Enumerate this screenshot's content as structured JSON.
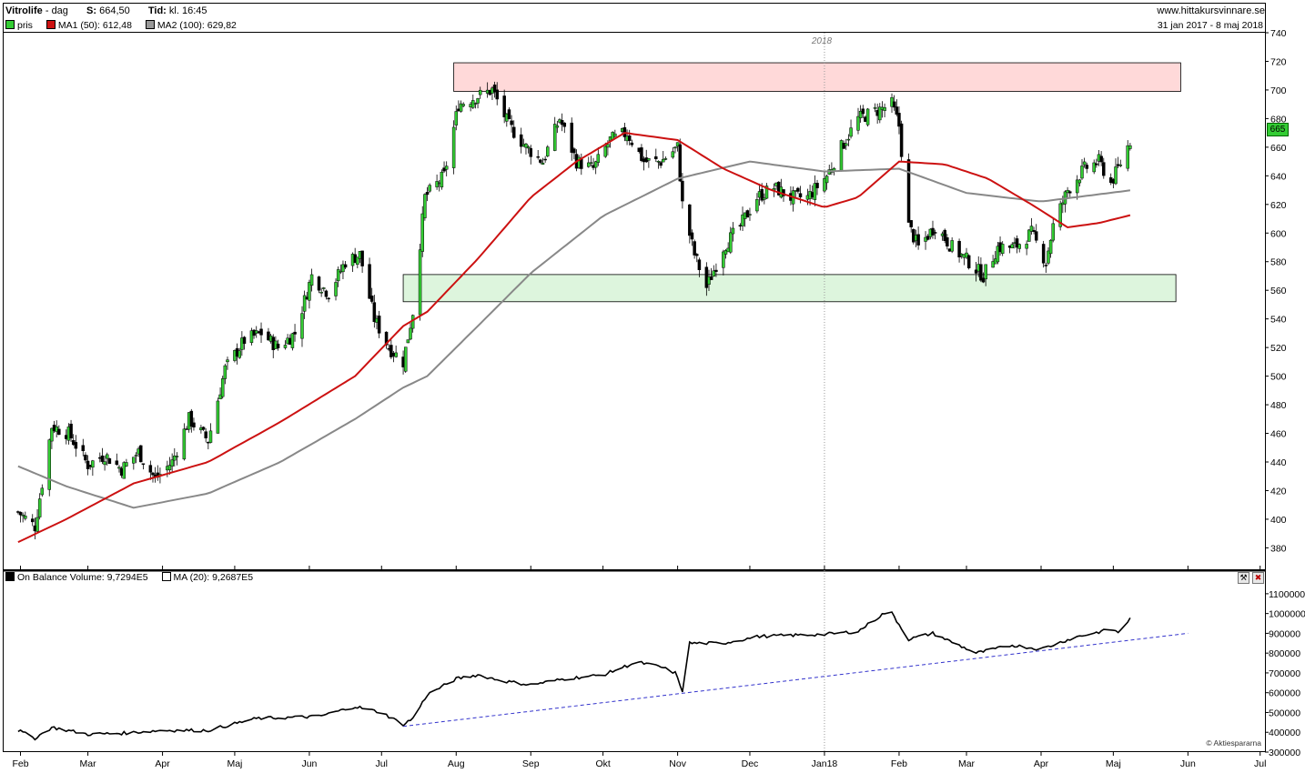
{
  "header": {
    "ticker": "Vitrolife",
    "period": "dag",
    "price_label": "S:",
    "price_value": "664,50",
    "time_label": "Tid:",
    "time_value": "kl. 16:45",
    "site": "www.hittakursvinnare.se",
    "date_range": "31 jan 2017 - 8 maj 2018"
  },
  "legend": {
    "pris": "pris",
    "ma1": "MA1 (50): 612,48",
    "ma2": "MA2 (100): 629,82",
    "obv": "On Balance Volume: 9,7294E5",
    "obv_ma": "MA (20): 9,2687E5"
  },
  "colors": {
    "up_candle": "#33cc33",
    "down_candle": "#000000",
    "ma1": "#cc1111",
    "ma2": "#888888",
    "obv": "#000000",
    "trendline": "#3333cc",
    "resistance_zone": "#ffd9d9",
    "support_zone": "#ddf5dd",
    "price_marker": "#33cc33"
  },
  "copyright": "© Aktiespararna",
  "year_marker": "2018",
  "price_marker": "665",
  "chart_data": [
    {
      "type": "candlestick",
      "title": "Vitrolife",
      "x_ticks": [
        "Feb",
        "Mar",
        "Apr",
        "Maj",
        "Jun",
        "Jul",
        "Aug",
        "Sep",
        "Okt",
        "Nov",
        "Dec",
        "Jan18",
        "Feb",
        "Mar",
        "Apr",
        "Maj",
        "Jun",
        "Jul"
      ],
      "ylim": [
        365,
        740
      ],
      "y_ticks": [
        380,
        400,
        420,
        440,
        460,
        480,
        500,
        520,
        540,
        560,
        580,
        600,
        620,
        640,
        660,
        680,
        700,
        720,
        740
      ],
      "close_anchors": [
        {
          "date": "2017-01-31",
          "value": 405
        },
        {
          "date": "2017-02-07",
          "value": 395
        },
        {
          "date": "2017-02-14",
          "value": 465
        },
        {
          "date": "2017-02-21",
          "value": 460
        },
        {
          "date": "2017-03-01",
          "value": 438
        },
        {
          "date": "2017-03-08",
          "value": 445
        },
        {
          "date": "2017-03-15",
          "value": 435
        },
        {
          "date": "2017-03-22",
          "value": 447
        },
        {
          "date": "2017-03-29",
          "value": 428
        },
        {
          "date": "2017-04-05",
          "value": 440
        },
        {
          "date": "2017-04-12",
          "value": 470
        },
        {
          "date": "2017-04-20",
          "value": 455
        },
        {
          "date": "2017-04-27",
          "value": 505
        },
        {
          "date": "2017-05-05",
          "value": 525
        },
        {
          "date": "2017-05-12",
          "value": 530
        },
        {
          "date": "2017-05-19",
          "value": 520
        },
        {
          "date": "2017-05-26",
          "value": 530
        },
        {
          "date": "2017-06-02",
          "value": 570
        },
        {
          "date": "2017-06-09",
          "value": 558
        },
        {
          "date": "2017-06-16",
          "value": 580
        },
        {
          "date": "2017-06-22",
          "value": 585
        },
        {
          "date": "2017-06-28",
          "value": 540
        },
        {
          "date": "2017-07-04",
          "value": 520
        },
        {
          "date": "2017-07-10",
          "value": 510
        },
        {
          "date": "2017-07-14",
          "value": 545
        },
        {
          "date": "2017-07-19",
          "value": 625
        },
        {
          "date": "2017-07-27",
          "value": 640
        },
        {
          "date": "2017-08-02",
          "value": 690
        },
        {
          "date": "2017-08-09",
          "value": 695
        },
        {
          "date": "2017-08-16",
          "value": 700
        },
        {
          "date": "2017-08-23",
          "value": 675
        },
        {
          "date": "2017-08-30",
          "value": 660
        },
        {
          "date": "2017-09-06",
          "value": 650
        },
        {
          "date": "2017-09-13",
          "value": 680
        },
        {
          "date": "2017-09-20",
          "value": 650
        },
        {
          "date": "2017-09-27",
          "value": 645
        },
        {
          "date": "2017-10-04",
          "value": 665
        },
        {
          "date": "2017-10-11",
          "value": 670
        },
        {
          "date": "2017-10-18",
          "value": 650
        },
        {
          "date": "2017-10-25",
          "value": 650
        },
        {
          "date": "2017-11-01",
          "value": 660
        },
        {
          "date": "2017-11-03",
          "value": 620
        },
        {
          "date": "2017-11-08",
          "value": 585
        },
        {
          "date": "2017-11-13",
          "value": 562
        },
        {
          "date": "2017-11-20",
          "value": 590
        },
        {
          "date": "2017-11-27",
          "value": 605
        },
        {
          "date": "2017-12-04",
          "value": 625
        },
        {
          "date": "2017-12-11",
          "value": 632
        },
        {
          "date": "2017-12-18",
          "value": 625
        },
        {
          "date": "2017-12-25",
          "value": 625
        },
        {
          "date": "2018-01-02",
          "value": 640
        },
        {
          "date": "2018-01-08",
          "value": 660
        },
        {
          "date": "2018-01-15",
          "value": 680
        },
        {
          "date": "2018-01-22",
          "value": 685
        },
        {
          "date": "2018-01-29",
          "value": 690
        },
        {
          "date": "2018-02-01",
          "value": 675
        },
        {
          "date": "2018-02-05",
          "value": 605
        },
        {
          "date": "2018-02-09",
          "value": 590
        },
        {
          "date": "2018-02-16",
          "value": 605
        },
        {
          "date": "2018-02-23",
          "value": 590
        },
        {
          "date": "2018-03-02",
          "value": 580
        },
        {
          "date": "2018-03-08",
          "value": 570
        },
        {
          "date": "2018-03-14",
          "value": 590
        },
        {
          "date": "2018-03-21",
          "value": 590
        },
        {
          "date": "2018-03-28",
          "value": 600
        },
        {
          "date": "2018-04-03",
          "value": 580
        },
        {
          "date": "2018-04-06",
          "value": 605
        },
        {
          "date": "2018-04-12",
          "value": 630
        },
        {
          "date": "2018-04-19",
          "value": 645
        },
        {
          "date": "2018-04-25",
          "value": 650
        },
        {
          "date": "2018-04-30",
          "value": 635
        },
        {
          "date": "2018-05-03",
          "value": 645
        },
        {
          "date": "2018-05-08",
          "value": 664.5
        }
      ],
      "ma1": {
        "name": "MA1 (50)",
        "points": [
          {
            "date": "2017-01-31",
            "value": 384
          },
          {
            "date": "2017-02-20",
            "value": 400
          },
          {
            "date": "2017-03-20",
            "value": 425
          },
          {
            "date": "2017-04-20",
            "value": 440
          },
          {
            "date": "2017-05-20",
            "value": 468
          },
          {
            "date": "2017-06-20",
            "value": 500
          },
          {
            "date": "2017-07-10",
            "value": 535
          },
          {
            "date": "2017-07-20",
            "value": 545
          },
          {
            "date": "2017-08-10",
            "value": 582
          },
          {
            "date": "2017-09-01",
            "value": 625
          },
          {
            "date": "2017-09-20",
            "value": 650
          },
          {
            "date": "2017-10-10",
            "value": 670
          },
          {
            "date": "2017-11-01",
            "value": 665
          },
          {
            "date": "2017-11-20",
            "value": 645
          },
          {
            "date": "2017-12-10",
            "value": 630
          },
          {
            "date": "2018-01-01",
            "value": 618
          },
          {
            "date": "2018-01-15",
            "value": 625
          },
          {
            "date": "2018-02-01",
            "value": 650
          },
          {
            "date": "2018-02-20",
            "value": 648
          },
          {
            "date": "2018-03-10",
            "value": 638
          },
          {
            "date": "2018-03-28",
            "value": 620
          },
          {
            "date": "2018-04-12",
            "value": 604
          },
          {
            "date": "2018-04-25",
            "value": 607
          },
          {
            "date": "2018-05-08",
            "value": 612.48
          }
        ]
      },
      "ma2": {
        "name": "MA2 (100)",
        "points": [
          {
            "date": "2017-01-31",
            "value": 437
          },
          {
            "date": "2017-02-20",
            "value": 423
          },
          {
            "date": "2017-03-20",
            "value": 408
          },
          {
            "date": "2017-04-20",
            "value": 418
          },
          {
            "date": "2017-05-20",
            "value": 440
          },
          {
            "date": "2017-06-20",
            "value": 470
          },
          {
            "date": "2017-07-10",
            "value": 492
          },
          {
            "date": "2017-07-20",
            "value": 500
          },
          {
            "date": "2017-08-10",
            "value": 535
          },
          {
            "date": "2017-09-01",
            "value": 572
          },
          {
            "date": "2017-10-01",
            "value": 612
          },
          {
            "date": "2017-11-01",
            "value": 638
          },
          {
            "date": "2017-12-01",
            "value": 650
          },
          {
            "date": "2018-01-01",
            "value": 643
          },
          {
            "date": "2018-02-01",
            "value": 645
          },
          {
            "date": "2018-03-01",
            "value": 628
          },
          {
            "date": "2018-04-01",
            "value": 622
          },
          {
            "date": "2018-05-08",
            "value": 629.82
          }
        ]
      },
      "zones": [
        {
          "name": "resistance",
          "from": "2017-07-31",
          "to": "2018-05-29",
          "low": 699,
          "high": 719
        },
        {
          "name": "support",
          "from": "2017-07-10",
          "to": "2018-05-27",
          "low": 552,
          "high": 571
        }
      ]
    },
    {
      "type": "line",
      "title": "On Balance Volume",
      "ylim": [
        300000,
        1150000
      ],
      "y_ticks": [
        300000,
        400000,
        500000,
        600000,
        700000,
        800000,
        900000,
        1000000,
        1100000
      ],
      "obv_anchors": [
        {
          "date": "2017-01-31",
          "value": 410000
        },
        {
          "date": "2017-02-07",
          "value": 370000
        },
        {
          "date": "2017-02-14",
          "value": 425000
        },
        {
          "date": "2017-03-01",
          "value": 390000
        },
        {
          "date": "2017-03-15",
          "value": 395000
        },
        {
          "date": "2017-04-01",
          "value": 410000
        },
        {
          "date": "2017-04-20",
          "value": 410000
        },
        {
          "date": "2017-05-10",
          "value": 470000
        },
        {
          "date": "2017-05-25",
          "value": 475000
        },
        {
          "date": "2017-06-05",
          "value": 480000
        },
        {
          "date": "2017-06-20",
          "value": 530000
        },
        {
          "date": "2017-07-01",
          "value": 500000
        },
        {
          "date": "2017-07-10",
          "value": 440000
        },
        {
          "date": "2017-07-14",
          "value": 470000
        },
        {
          "date": "2017-07-20",
          "value": 590000
        },
        {
          "date": "2017-08-01",
          "value": 670000
        },
        {
          "date": "2017-08-10",
          "value": 690000
        },
        {
          "date": "2017-08-20",
          "value": 660000
        },
        {
          "date": "2017-09-01",
          "value": 640000
        },
        {
          "date": "2017-09-15",
          "value": 670000
        },
        {
          "date": "2017-10-01",
          "value": 690000
        },
        {
          "date": "2017-10-15",
          "value": 755000
        },
        {
          "date": "2017-10-25",
          "value": 730000
        },
        {
          "date": "2017-10-31",
          "value": 700000
        },
        {
          "date": "2017-11-03",
          "value": 610000
        },
        {
          "date": "2017-11-06",
          "value": 850000
        },
        {
          "date": "2017-11-20",
          "value": 850000
        },
        {
          "date": "2017-12-05",
          "value": 885000
        },
        {
          "date": "2018-01-01",
          "value": 895000
        },
        {
          "date": "2018-01-15",
          "value": 910000
        },
        {
          "date": "2018-01-28",
          "value": 1020000
        },
        {
          "date": "2018-02-05",
          "value": 870000
        },
        {
          "date": "2018-02-15",
          "value": 900000
        },
        {
          "date": "2018-03-05",
          "value": 800000
        },
        {
          "date": "2018-03-20",
          "value": 840000
        },
        {
          "date": "2018-04-01",
          "value": 820000
        },
        {
          "date": "2018-04-15",
          "value": 880000
        },
        {
          "date": "2018-04-30",
          "value": 920000
        },
        {
          "date": "2018-05-03",
          "value": 905000
        },
        {
          "date": "2018-05-08",
          "value": 972940
        }
      ],
      "trendline": {
        "from": {
          "date": "2017-07-10",
          "value": 430000
        },
        "to": {
          "date": "2018-06-01",
          "value": 900000
        }
      }
    }
  ]
}
